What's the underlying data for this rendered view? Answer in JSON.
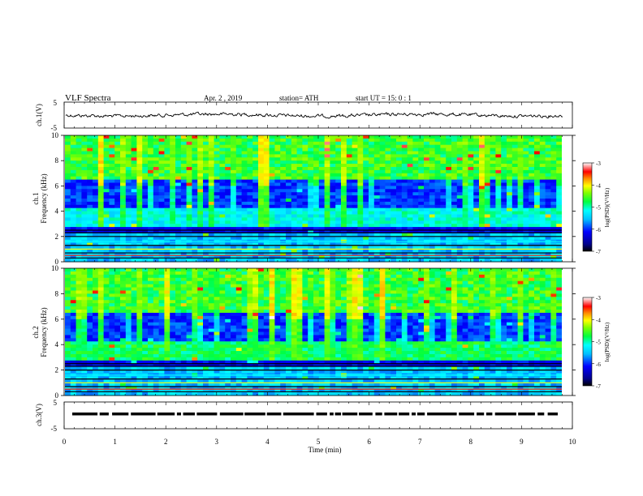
{
  "header": {
    "title": "VLF  Spectra",
    "date": "Apr. 2  , 2019",
    "station": "station= ATH",
    "start": "start  UT  =    15: 0   : 1"
  },
  "chart_data": [
    {
      "type": "line",
      "ylabel": "ch.1(V)",
      "ylim": [
        -5,
        5
      ],
      "yticks": [
        "5",
        "-5"
      ],
      "xlim": [
        0,
        10
      ],
      "description_level": 0,
      "color": "#000000"
    },
    {
      "type": "heatmap",
      "ylabel_top": "ch.1",
      "ylabel": "Frequency  (kHz)",
      "ylim": [
        0,
        10
      ],
      "yticks": [
        "0",
        "2",
        "4",
        "6",
        "8",
        "10"
      ],
      "xlim": [
        0,
        10
      ],
      "colorbar": {
        "label": "log(PSD)(V²/Hz)",
        "ticks": [
          "-3",
          "-4",
          "-5",
          "-6",
          "-7"
        ],
        "range": [
          -7,
          -3
        ]
      }
    },
    {
      "type": "heatmap",
      "ylabel_top": "ch.2",
      "ylabel": "Frequency  (kHz)",
      "ylim": [
        0,
        10
      ],
      "yticks": [
        "0",
        "2",
        "4",
        "6",
        "8",
        "10"
      ],
      "xlim": [
        0,
        10
      ],
      "colorbar": {
        "label": "log(PSD)(V²/Hz)",
        "ticks": [
          "-3",
          "-4",
          "-5",
          "-6",
          "-7"
        ],
        "range": [
          -7,
          -3
        ]
      }
    },
    {
      "type": "line",
      "ylabel": "ch.3(V)",
      "ylim": [
        -5,
        5
      ],
      "yticks": [
        "5",
        "-5"
      ],
      "xlim": [
        0,
        10
      ],
      "color": "#000000"
    }
  ],
  "xaxis": {
    "label": "Time  (min)",
    "ticks": [
      "0",
      "1",
      "2",
      "3",
      "4",
      "5",
      "6",
      "7",
      "8",
      "9",
      "10"
    ]
  }
}
